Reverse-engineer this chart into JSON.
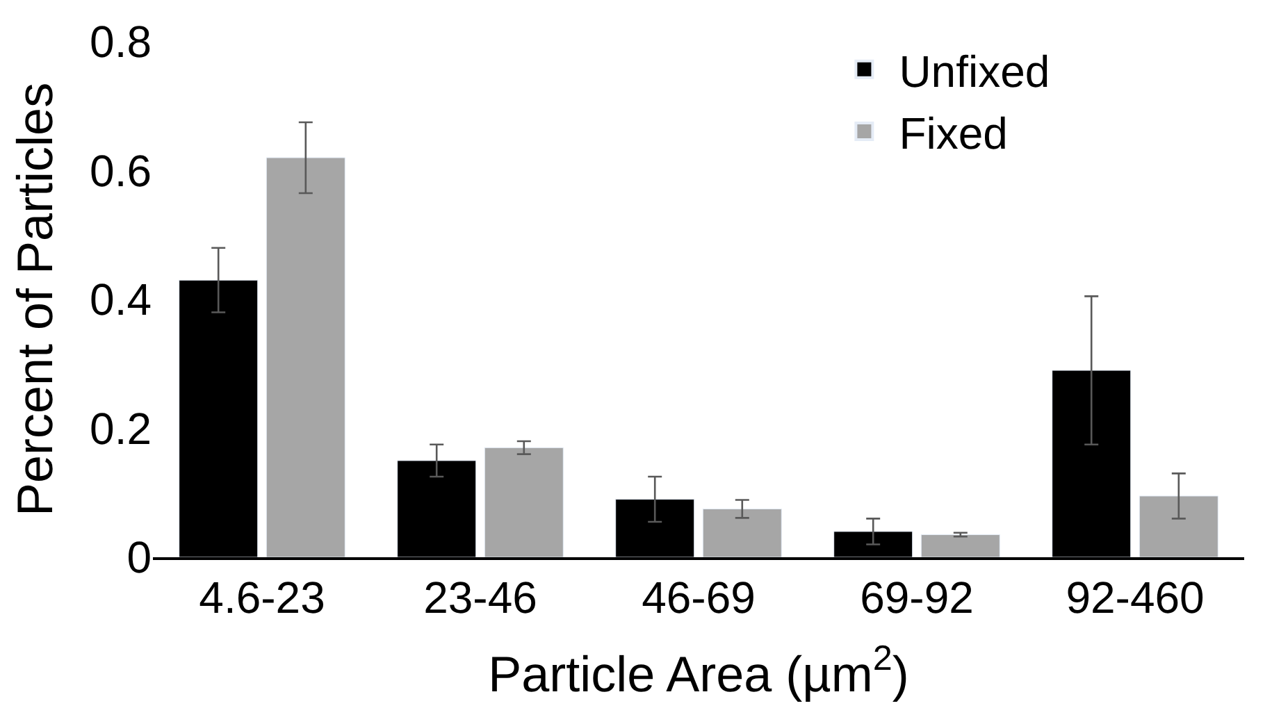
{
  "chart_data": {
    "type": "bar",
    "xlabel": "Particle Area (µm$^{2}$)",
    "ylabel": "Percent of Particles",
    "categories": [
      "4.6-23",
      "23-46",
      "46-69",
      "69-92",
      "92-460"
    ],
    "series": [
      {
        "name": "Unfixed",
        "color": "#000000",
        "values": [
          0.43,
          0.15,
          0.09,
          0.04,
          0.29
        ],
        "errors": [
          0.05,
          0.025,
          0.035,
          0.02,
          0.115
        ]
      },
      {
        "name": "Fixed",
        "color": "#a6a6a6",
        "values": [
          0.62,
          0.17,
          0.075,
          0.035,
          0.095
        ],
        "errors": [
          0.055,
          0.01,
          0.014,
          0.003,
          0.035
        ]
      }
    ],
    "ylim": [
      0,
      0.8
    ],
    "yticks": [
      {
        "value": 0,
        "label": "0"
      },
      0.2,
      0.4,
      0.6,
      0.8
    ],
    "legend": "top right"
  }
}
